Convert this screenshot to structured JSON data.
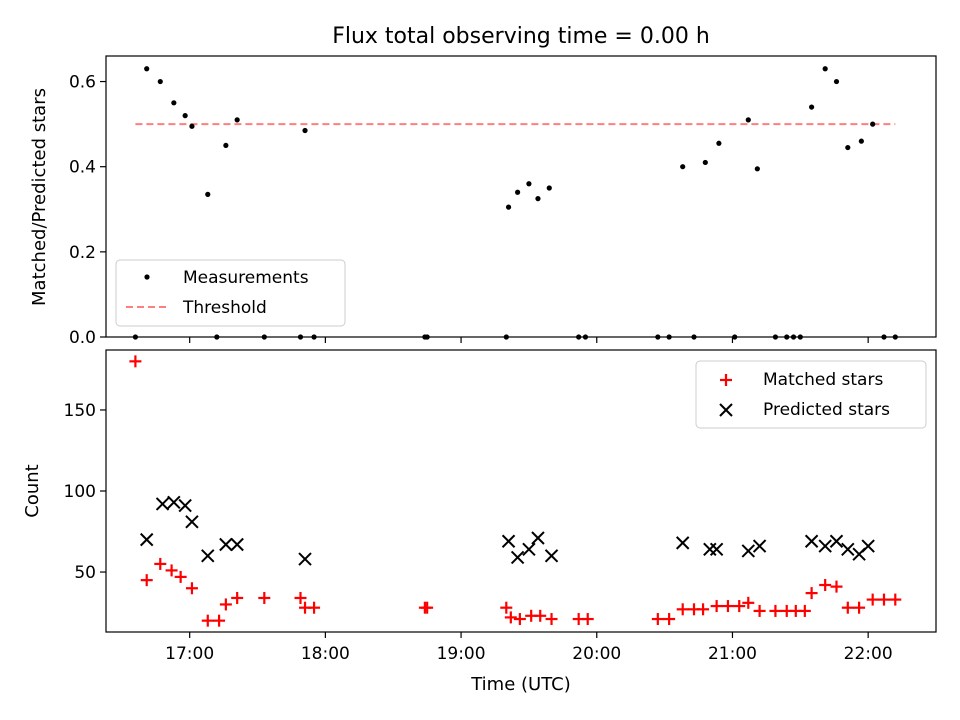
{
  "chart_data": [
    {
      "type": "scatter",
      "title": "Flux total observing time = 0.00 h",
      "xlabel": "",
      "ylabel": "Matched/Predicted stars",
      "xlim": [
        "16:23",
        "22:30"
      ],
      "ylim": [
        0,
        0.66
      ],
      "yticks": [
        0.0,
        0.2,
        0.4,
        0.6
      ],
      "ytick_labels": [
        "0.0",
        "0.2",
        "0.4",
        "0.6"
      ],
      "legend_position": "lower-left",
      "series": [
        {
          "name": "Measurements",
          "marker": "dot",
          "color": "#000000",
          "points": [
            [
              "16:36",
              0.0
            ],
            [
              "16:41",
              0.63
            ],
            [
              "16:47",
              0.6
            ],
            [
              "16:53",
              0.55
            ],
            [
              "16:58",
              0.52
            ],
            [
              "17:01",
              0.495
            ],
            [
              "17:08",
              0.335
            ],
            [
              "17:12",
              0.0
            ],
            [
              "17:16",
              0.45
            ],
            [
              "17:21",
              0.51
            ],
            [
              "17:33",
              0.0
            ],
            [
              "17:49",
              0.0
            ],
            [
              "17:51",
              0.485
            ],
            [
              "17:55",
              0.0
            ],
            [
              "18:44",
              0.0
            ],
            [
              "18:45",
              0.0
            ],
            [
              "19:20",
              0.0
            ],
            [
              "19:21",
              0.305
            ],
            [
              "19:25",
              0.34
            ],
            [
              "19:30",
              0.36
            ],
            [
              "19:34",
              0.325
            ],
            [
              "19:39",
              0.35
            ],
            [
              "19:52",
              0.0
            ],
            [
              "19:55",
              0.0
            ],
            [
              "20:27",
              0.0
            ],
            [
              "20:32",
              0.0
            ],
            [
              "20:38",
              0.4
            ],
            [
              "20:43",
              0.0
            ],
            [
              "20:48",
              0.41
            ],
            [
              "20:54",
              0.455
            ],
            [
              "21:01",
              0.0
            ],
            [
              "21:07",
              0.51
            ],
            [
              "21:11",
              0.395
            ],
            [
              "21:19",
              0.0
            ],
            [
              "21:24",
              0.0
            ],
            [
              "21:27",
              0.0
            ],
            [
              "21:30",
              0.0
            ],
            [
              "21:35",
              0.54
            ],
            [
              "21:41",
              0.63
            ],
            [
              "21:46",
              0.6
            ],
            [
              "21:51",
              0.445
            ],
            [
              "21:57",
              0.46
            ],
            [
              "22:02",
              0.5
            ],
            [
              "22:07",
              0.0
            ],
            [
              "22:12",
              0.0
            ]
          ]
        },
        {
          "name": "Threshold",
          "line": "dashed",
          "color": "#ff7f7f",
          "points": [
            [
              "16:36",
              0.5
            ],
            [
              "22:12",
              0.5
            ]
          ]
        }
      ]
    },
    {
      "type": "scatter",
      "title": "",
      "xlabel": "Time (UTC)",
      "ylabel": "Count",
      "xlim": [
        "16:23",
        "22:30"
      ],
      "ylim": [
        13,
        187
      ],
      "yticks": [
        50,
        100,
        150
      ],
      "ytick_labels": [
        "50",
        "100",
        "150"
      ],
      "xticks": [
        "17:00",
        "18:00",
        "19:00",
        "20:00",
        "21:00",
        "22:00"
      ],
      "xtick_labels": [
        "17:00",
        "18:00",
        "19:00",
        "20:00",
        "21:00",
        "22:00"
      ],
      "legend_position": "upper-right",
      "series": [
        {
          "name": "Matched stars",
          "marker": "plus",
          "color": "#ff0000",
          "points": [
            [
              "16:36",
              180
            ],
            [
              "16:41",
              45
            ],
            [
              "16:47",
              55
            ],
            [
              "16:52",
              51
            ],
            [
              "16:56",
              47
            ],
            [
              "17:01",
              40
            ],
            [
              "17:08",
              20
            ],
            [
              "17:13",
              20
            ],
            [
              "17:16",
              30
            ],
            [
              "17:21",
              34
            ],
            [
              "17:33",
              34
            ],
            [
              "17:49",
              34
            ],
            [
              "17:51",
              28
            ],
            [
              "17:55",
              28
            ],
            [
              "18:44",
              28
            ],
            [
              "18:45",
              28
            ],
            [
              "19:20",
              28
            ],
            [
              "19:22",
              22
            ],
            [
              "19:26",
              21
            ],
            [
              "19:31",
              23
            ],
            [
              "19:35",
              23
            ],
            [
              "19:40",
              21
            ],
            [
              "19:52",
              21
            ],
            [
              "19:56",
              21
            ],
            [
              "20:27",
              21
            ],
            [
              "20:32",
              21
            ],
            [
              "20:38",
              27
            ],
            [
              "20:43",
              27
            ],
            [
              "20:47",
              27
            ],
            [
              "20:53",
              29
            ],
            [
              "20:58",
              29
            ],
            [
              "21:03",
              29
            ],
            [
              "21:07",
              31
            ],
            [
              "21:12",
              26
            ],
            [
              "21:19",
              26
            ],
            [
              "21:24",
              26
            ],
            [
              "21:28",
              26
            ],
            [
              "21:32",
              26
            ],
            [
              "21:35",
              37
            ],
            [
              "21:41",
              42
            ],
            [
              "21:46",
              41
            ],
            [
              "21:51",
              28
            ],
            [
              "21:56",
              28
            ],
            [
              "22:02",
              33
            ],
            [
              "22:07",
              33
            ],
            [
              "22:12",
              33
            ]
          ]
        },
        {
          "name": "Predicted stars",
          "marker": "x",
          "color": "#000000",
          "points": [
            [
              "16:41",
              70
            ],
            [
              "16:48",
              92
            ],
            [
              "16:53",
              93
            ],
            [
              "16:58",
              91
            ],
            [
              "17:01",
              81
            ],
            [
              "17:08",
              60
            ],
            [
              "17:16",
              67
            ],
            [
              "17:21",
              67
            ],
            [
              "17:51",
              58
            ],
            [
              "19:21",
              69
            ],
            [
              "19:25",
              59
            ],
            [
              "19:30",
              64
            ],
            [
              "19:34",
              71
            ],
            [
              "19:40",
              60
            ],
            [
              "20:38",
              68
            ],
            [
              "20:50",
              64
            ],
            [
              "20:53",
              64
            ],
            [
              "21:07",
              63
            ],
            [
              "21:12",
              66
            ],
            [
              "21:35",
              69
            ],
            [
              "21:41",
              66
            ],
            [
              "21:46",
              69
            ],
            [
              "21:51",
              64
            ],
            [
              "21:56",
              61
            ],
            [
              "22:00",
              66
            ]
          ]
        }
      ]
    }
  ]
}
